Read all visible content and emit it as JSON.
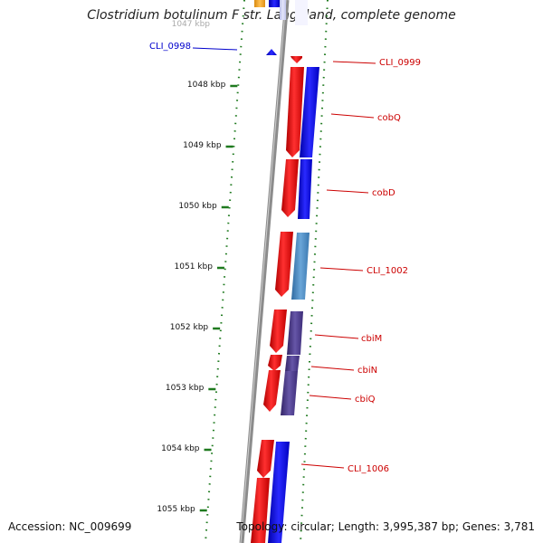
{
  "title": "Clostridium botulinum F str. Langeland, complete genome",
  "footer": {
    "accession": "Accession: NC_009699",
    "info": "Topology: circular; Length: 3,995,387 bp; Genes: 3,781"
  },
  "colors": {
    "forward": "#ff0000",
    "reverse": "#0000ff",
    "reverse_light": "#4a86c0",
    "reverse_purple": "#4b3c8c",
    "orange": "#f4a020",
    "ruler_tick": "#1f7a1f",
    "forward_label": "#cc0000",
    "reverse_label": "#0000cc",
    "backbone": "#8c8c8c"
  },
  "ruler": {
    "partial_top_label": "1047 kbp",
    "ticks": [
      "1048 kbp",
      "1049 kbp",
      "1050 kbp",
      "1051 kbp",
      "1052 kbp",
      "1053 kbp",
      "1054 kbp",
      "1055 kbp"
    ]
  },
  "genes": [
    {
      "name": "CLI_0998",
      "strand": "reverse",
      "start_kbp": 1047.45,
      "end_kbp": 1047.5
    },
    {
      "name": "CLI_0999",
      "strand": "forward",
      "start_kbp": 1047.55,
      "end_kbp": 1047.62
    },
    {
      "name": "cobQ",
      "strand": "forward",
      "start_kbp": 1047.62,
      "end_kbp": 1049.3
    },
    {
      "name": "cobD",
      "strand": "forward",
      "start_kbp": 1049.3,
      "end_kbp": 1050.35
    },
    {
      "name": "CLI_1002",
      "strand": "forward",
      "start_kbp": 1050.6,
      "end_kbp": 1051.55
    },
    {
      "name": "cbiM",
      "strand": "forward",
      "start_kbp": 1051.7,
      "end_kbp": 1052.45
    },
    {
      "name": "cbiN",
      "strand": "forward",
      "start_kbp": 1052.45,
      "end_kbp": 1052.75
    },
    {
      "name": "cbiQ",
      "strand": "forward",
      "start_kbp": 1052.75,
      "end_kbp": 1053.45
    },
    {
      "name": "CLI_1006",
      "strand": "forward",
      "start_kbp": 1053.9,
      "end_kbp": 1055.5
    }
  ]
}
